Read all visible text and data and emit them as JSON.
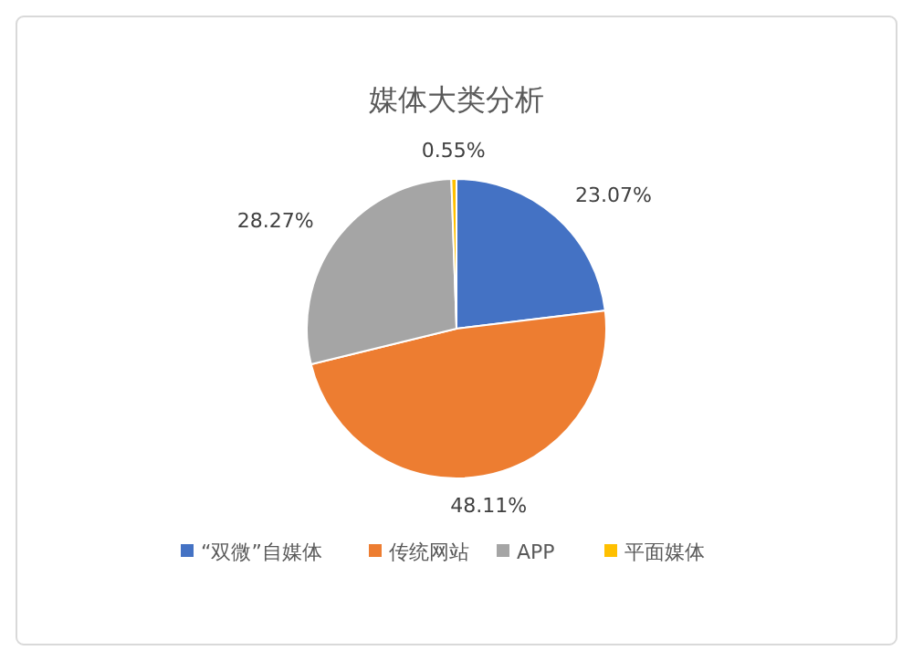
{
  "chart_data": {
    "type": "pie",
    "title": "媒体大类分析",
    "categories": [
      "“双微”自媒体",
      "传统网站",
      "APP",
      "平面媒体"
    ],
    "values": [
      23.07,
      48.11,
      28.27,
      0.55
    ],
    "colors": [
      "#4472c4",
      "#ed7d31",
      "#a5a5a5",
      "#ffc000"
    ],
    "value_labels": [
      "23.07%",
      "48.11%",
      "28.27%",
      "0.55%"
    ],
    "legend": "bottom"
  }
}
